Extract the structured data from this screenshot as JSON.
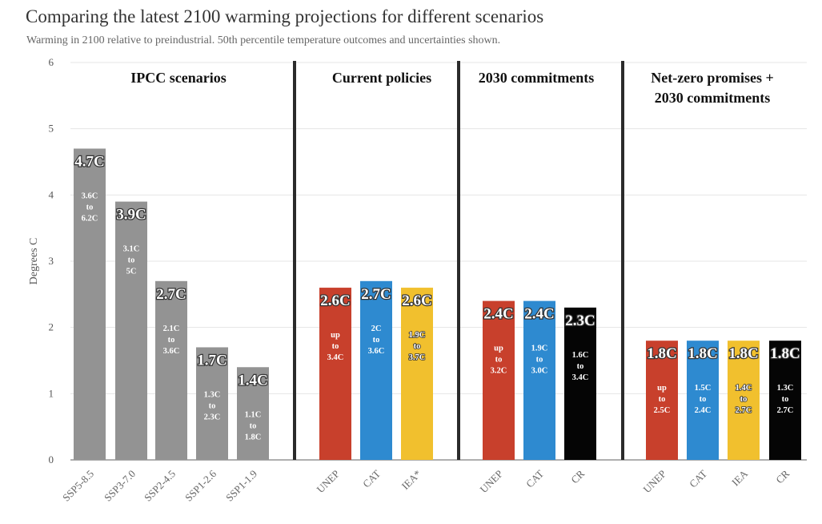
{
  "chart_data": {
    "type": "bar",
    "title": "Comparing the latest 2100 warming projections for different scenarios",
    "subtitle": "Warming in 2100 relative to preindustrial. 50th percentile temperature outcomes and uncertainties shown.",
    "ylabel": "Degrees C",
    "ylim": [
      0,
      6
    ],
    "yticks": [
      "0",
      "1",
      "2",
      "3",
      "4",
      "5",
      "6"
    ],
    "grid": true,
    "colors": {
      "gray": "#939393",
      "red": "#c8402c",
      "blue": "#2e8ad0",
      "yellow": "#f1c02e",
      "black": "#050505"
    },
    "groups": [
      {
        "title": [
          "IPCC scenarios"
        ],
        "bars": [
          {
            "label": "SSP5-8.5",
            "value": 4.7,
            "value_label": "4.7C",
            "range_label": [
              "3.6C",
              "to",
              "6.2C"
            ],
            "color": "gray"
          },
          {
            "label": "SSP3-7.0",
            "value": 3.9,
            "value_label": "3.9C",
            "range_label": [
              "3.1C",
              "to",
              "5C"
            ],
            "color": "gray"
          },
          {
            "label": "SSP2-4.5",
            "value": 2.7,
            "value_label": "2.7C",
            "range_label": [
              "2.1C",
              "to",
              "3.6C"
            ],
            "color": "gray"
          },
          {
            "label": "SSP1-2.6",
            "value": 1.7,
            "value_label": "1.7C",
            "range_label": [
              "1.3C",
              "to",
              "2.3C"
            ],
            "color": "gray"
          },
          {
            "label": "SSP1-1.9",
            "value": 1.4,
            "value_label": "1.4C",
            "range_label": [
              "1.1C",
              "to",
              "1.8C"
            ],
            "color": "gray"
          }
        ]
      },
      {
        "title": [
          "Current policies"
        ],
        "bars": [
          {
            "label": "UNEP",
            "value": 2.6,
            "value_label": "2.6C",
            "range_label": [
              "up",
              "to",
              "3.4C"
            ],
            "color": "red"
          },
          {
            "label": "CAT",
            "value": 2.7,
            "value_label": "2.7C",
            "range_label": [
              "2C",
              "to",
              "3.6C"
            ],
            "color": "blue"
          },
          {
            "label": "IEA*",
            "value": 2.6,
            "value_label": "2.6C",
            "range_label": [
              "1.9C",
              "to",
              "3.7C"
            ],
            "color": "yellow"
          }
        ]
      },
      {
        "title": [
          "2030 commitments"
        ],
        "bars": [
          {
            "label": "UNEP",
            "value": 2.4,
            "value_label": "2.4C",
            "range_label": [
              "up",
              "to",
              "3.2C"
            ],
            "color": "red"
          },
          {
            "label": "CAT",
            "value": 2.4,
            "value_label": "2.4C",
            "range_label": [
              "1.9C",
              "to",
              "3.0C"
            ],
            "color": "blue"
          },
          {
            "label": "CR",
            "value": 2.3,
            "value_label": "2.3C",
            "range_label": [
              "1.6C",
              "to",
              "3.4C"
            ],
            "color": "black"
          }
        ]
      },
      {
        "title": [
          "Net-zero promises +",
          "2030 commitments"
        ],
        "bars": [
          {
            "label": "UNEP",
            "value": 1.8,
            "value_label": "1.8C",
            "range_label": [
              "up",
              "to",
              "2.5C"
            ],
            "color": "red"
          },
          {
            "label": "CAT",
            "value": 1.8,
            "value_label": "1.8C",
            "range_label": [
              "1.5C",
              "to",
              "2.4C"
            ],
            "color": "blue"
          },
          {
            "label": "IEA",
            "value": 1.8,
            "value_label": "1.8C",
            "range_label": [
              "1.4C",
              "to",
              "2.7C"
            ],
            "color": "yellow"
          },
          {
            "label": "CR",
            "value": 1.8,
            "value_label": "1.8C",
            "range_label": [
              "1.3C",
              "to",
              "2.7C"
            ],
            "color": "black"
          }
        ]
      }
    ]
  }
}
